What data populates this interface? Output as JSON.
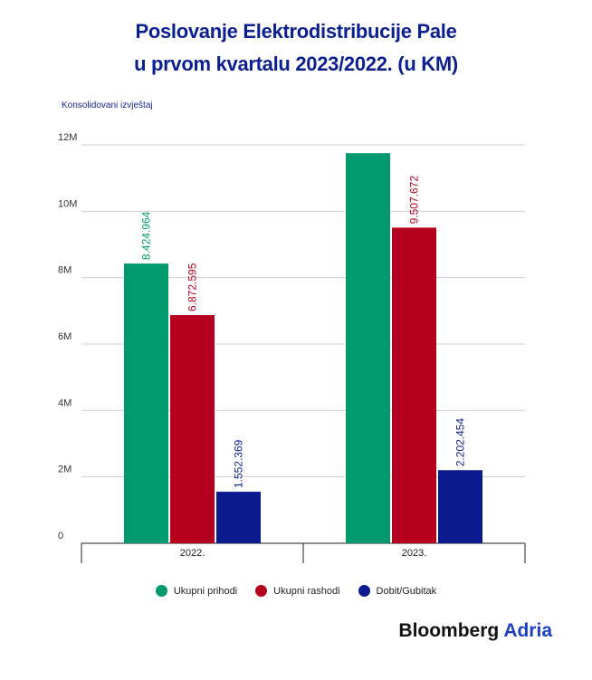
{
  "title_line1": "Poslovanje Elektrodistribucije Pale",
  "title_line2": "u prvom kvartalu 2023/2022. (u KM)",
  "subtitle": "Konsolidovani izvještaj",
  "brand": {
    "name": "Bloomberg",
    "accent": "Adria"
  },
  "colors": {
    "title": "#0b1f8f",
    "prihodi": "#009a6e",
    "rashodi": "#b5001f",
    "dobit": "#0b1a8c"
  },
  "chart_data": {
    "type": "bar",
    "categories": [
      "2022.",
      "2023."
    ],
    "series": [
      {
        "name": "Ukupni prihodi",
        "values": [
          8424964,
          11750000
        ],
        "labels": [
          "8.424.964",
          ""
        ],
        "color": "#009a6e"
      },
      {
        "name": "Ukupni rashodi",
        "values": [
          6872595,
          9507672
        ],
        "labels": [
          "6.872.595",
          "9.507.672"
        ],
        "color": "#b5001f"
      },
      {
        "name": "Dobit/Gubitak",
        "values": [
          1552369,
          2202454
        ],
        "labels": [
          "1.552.369",
          "2.202.454"
        ],
        "color": "#0b1a8c"
      }
    ],
    "ylim": [
      0,
      12000000
    ],
    "yticks": [
      0,
      2000000,
      4000000,
      6000000,
      8000000,
      10000000,
      12000000
    ],
    "ytick_labels": [
      "0",
      "2M",
      "4M",
      "6M",
      "8M",
      "10M",
      "12M"
    ],
    "grid": true,
    "legend_position": "bottom"
  }
}
